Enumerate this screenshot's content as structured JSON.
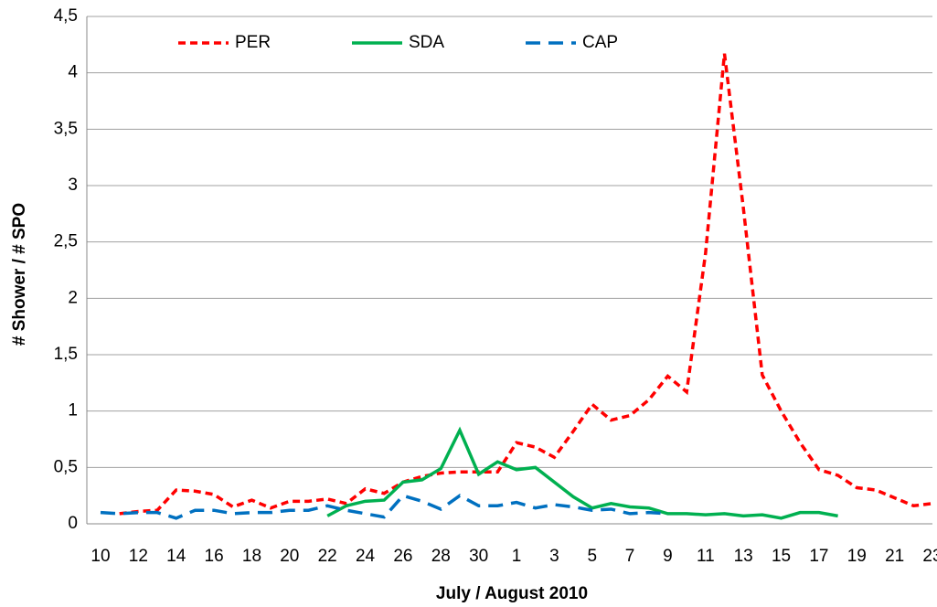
{
  "chart_data": {
    "type": "line",
    "xlabel": "July / August 2010",
    "ylabel": "# Shower / # SPO",
    "categories": [
      "10",
      null,
      "12",
      null,
      "14",
      null,
      "16",
      null,
      "18",
      null,
      "20",
      null,
      "22",
      null,
      "24",
      null,
      "26",
      null,
      "28",
      null,
      "30",
      null,
      "1",
      null,
      "3",
      null,
      "5",
      null,
      "7",
      null,
      "9",
      null,
      "11",
      null,
      "13",
      null,
      "15",
      null,
      "17",
      null,
      "19",
      null,
      "21",
      null,
      "23"
    ],
    "series": [
      {
        "name": "PER",
        "color": "#ff0000",
        "values": [
          null,
          0.09,
          0.11,
          0.12,
          0.3,
          0.29,
          0.26,
          0.15,
          0.21,
          0.14,
          0.2,
          0.2,
          0.22,
          0.18,
          0.31,
          0.27,
          0.37,
          0.42,
          0.45,
          0.46,
          0.46,
          0.46,
          0.72,
          0.68,
          0.59,
          0.82,
          1.06,
          0.92,
          0.96,
          1.1,
          1.31,
          1.17,
          2.4,
          4.17,
          2.8,
          1.32,
          1.0,
          0.72,
          0.48,
          0.43,
          0.32,
          0.3,
          0.23,
          0.16,
          0.18
        ]
      },
      {
        "name": "SDA",
        "color": "#00b050",
        "values": [
          null,
          null,
          null,
          null,
          null,
          null,
          null,
          null,
          null,
          null,
          null,
          null,
          0.07,
          0.16,
          0.2,
          0.21,
          0.37,
          0.39,
          0.49,
          0.83,
          0.44,
          0.55,
          0.48,
          0.5,
          0.37,
          0.24,
          0.14,
          0.18,
          0.15,
          0.14,
          0.09,
          0.09,
          0.08,
          0.09,
          0.07,
          0.08,
          0.05,
          0.1,
          0.1,
          0.07,
          null,
          null,
          null,
          null,
          null
        ]
      },
      {
        "name": "CAP",
        "color": "#0070c0",
        "values": [
          0.1,
          0.09,
          0.1,
          0.1,
          0.05,
          0.12,
          0.12,
          0.09,
          0.1,
          0.1,
          0.12,
          0.12,
          0.16,
          0.12,
          0.09,
          0.06,
          0.25,
          0.2,
          0.13,
          0.25,
          0.16,
          0.16,
          0.19,
          0.14,
          0.17,
          0.15,
          0.12,
          0.13,
          0.09,
          0.1,
          0.09,
          null,
          null,
          null,
          null,
          null,
          null,
          null,
          null,
          null,
          null,
          null,
          null,
          null,
          null
        ]
      }
    ],
    "ylim": [
      0,
      4.5
    ],
    "yticks": [
      0,
      {
        "value": 0.5,
        "label": "0,5"
      },
      1,
      {
        "value": 1.5,
        "label": "1,5"
      },
      2,
      {
        "value": 2.5,
        "label": "2,5"
      },
      3,
      {
        "value": 3.5,
        "label": "3,5"
      },
      4,
      {
        "value": 4.5,
        "label": "4,5"
      }
    ],
    "grid": true,
    "legend": "top"
  }
}
